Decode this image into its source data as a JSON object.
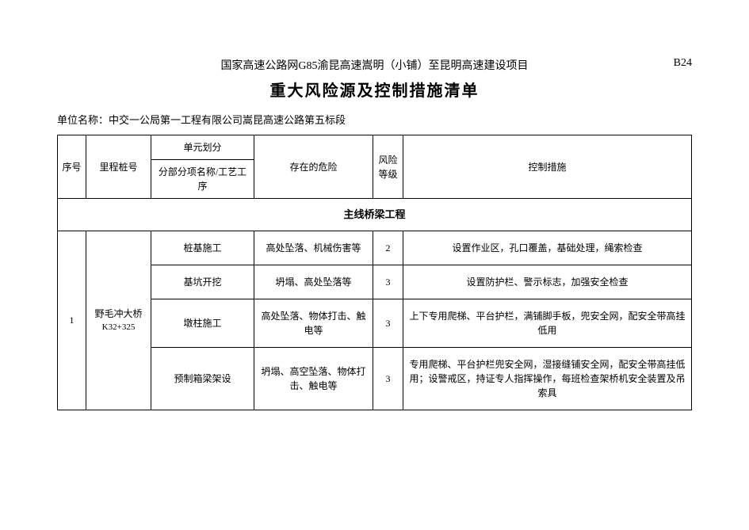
{
  "header": {
    "project_title": "国家高速公路网G85渝昆高速嵩明（小铺）至昆明高速建设项目",
    "doc_code": "B24",
    "main_title": "重大风险源及控制措施清单"
  },
  "org": {
    "label": "单位名称：",
    "value": "中交一公局第一工程有限公司嵩昆高速公路第五标段"
  },
  "table": {
    "headers": {
      "seq": "序号",
      "mileage": "里程桩号",
      "unit_group": "单元划分",
      "unit_sub": "分部分项名称/工艺工序",
      "risk": "存在的危险",
      "risk_level": "风险等级",
      "measures": "控制措施"
    },
    "section_title": "主线桥梁工程",
    "group": {
      "seq": "1",
      "mileage_main": "野毛冲大桥",
      "mileage_sub": "K32+325",
      "rows": [
        {
          "unit": "桩基施工",
          "risk": "高处坠落、机械伤害等",
          "level": "2",
          "measure": "设置作业区，孔口覆盖，基础处理，绳索检查"
        },
        {
          "unit": "基坑开挖",
          "risk": "坍塌、高处坠落等",
          "level": "3",
          "measure": "设置防护栏、警示标志，加强安全检查"
        },
        {
          "unit": "墩柱施工",
          "risk": "高处坠落、物体打击、触电等",
          "level": "3",
          "measure": "上下专用爬梯、平台护栏，满铺脚手板，兜安全网，配安全带高挂低用"
        },
        {
          "unit": "预制箱梁架设",
          "risk": "坍塌、高空坠落、物体打击、触电等",
          "level": "3",
          "measure": "专用爬梯、平台护栏兜安全网，湿接缝铺安全网，配安全带高挂低用；设警戒区，持证专人指挥操作，每班检查架桥机安全装置及吊索具"
        }
      ]
    }
  },
  "style": {
    "background_color": "#ffffff",
    "text_color": "#000000",
    "border_color": "#000000",
    "project_title_fontsize": 14,
    "doc_code_fontsize": 14,
    "main_title_fontsize": 20,
    "body_fontsize": 12,
    "font_family": "SimSun"
  }
}
